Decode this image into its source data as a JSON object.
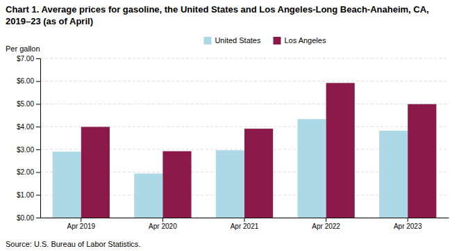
{
  "chart_data": {
    "type": "bar",
    "title": "Chart 1. Average prices for gasoline, the United States and Los Angeles-Long Beach-Anaheim, CA, 2019–23 (as of April)",
    "y_label": "Per gallon",
    "source": "Source: U.S. Bureau of Labor Statistics.",
    "categories": [
      "Apr 2019",
      "Apr 2020",
      "Apr 2021",
      "Apr 2022",
      "Apr 2023"
    ],
    "series": [
      {
        "name": "United States",
        "color": "#ADD8E6",
        "values": [
          2.9,
          1.94,
          2.96,
          4.33,
          3.82
        ]
      },
      {
        "name": "Los Angeles",
        "color": "#8B1A4A",
        "values": [
          3.99,
          2.92,
          3.91,
          5.92,
          4.99
        ]
      }
    ],
    "ylim": [
      0,
      7.0
    ],
    "yticks": [
      {
        "value": 0.0,
        "label": "$0.00"
      },
      {
        "value": 1.0,
        "label": "$1.00"
      },
      {
        "value": 2.0,
        "label": "$2.00"
      },
      {
        "value": 3.0,
        "label": "$3.00"
      },
      {
        "value": 4.0,
        "label": "$4.00"
      },
      {
        "value": 5.0,
        "label": "$5.00"
      },
      {
        "value": 6.0,
        "label": "$6.00"
      },
      {
        "value": 7.0,
        "label": "$7.00"
      }
    ],
    "grid": true,
    "legend": "top"
  }
}
